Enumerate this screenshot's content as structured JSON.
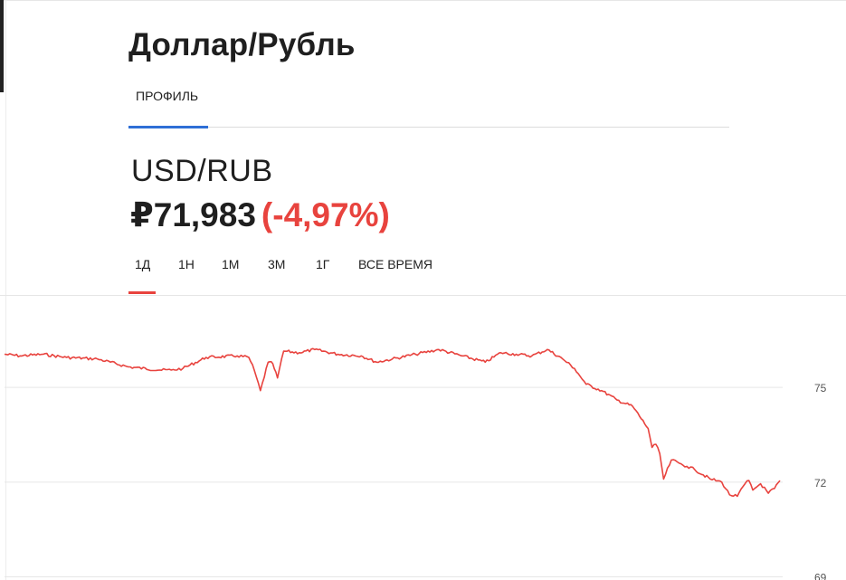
{
  "header": {
    "title": "Доллар/Рубль"
  },
  "tabs": [
    {
      "label": "ПРОФИЛЬ",
      "active": true
    }
  ],
  "quote": {
    "symbol": "USD/RUB",
    "price": "₽71,983",
    "change": "(-4,97%)"
  },
  "periods": [
    {
      "label": "1Д",
      "active": true
    },
    {
      "label": "1Н"
    },
    {
      "label": "1М"
    },
    {
      "label": "3М"
    },
    {
      "label": "1Г"
    },
    {
      "label": "ВСЕ ВРЕМЯ"
    }
  ],
  "colors": {
    "accent_tab": "#2e6fd6",
    "negative": "#e8433e",
    "line": "#e8433e",
    "grid": "#e6e6e6"
  },
  "chart_data": {
    "type": "line",
    "title": "",
    "xlabel": "",
    "ylabel": "",
    "ylim": [
      68.9,
      77.9
    ],
    "yticks": [
      75,
      72,
      69
    ],
    "grid": true,
    "series": [
      {
        "x": [
          0,
          0.02,
          0.05,
          0.08,
          0.12,
          0.16,
          0.2,
          0.215,
          0.23,
          0.26,
          0.3,
          0.315,
          0.322,
          0.33,
          0.34,
          0.346,
          0.352,
          0.36,
          0.38,
          0.4,
          0.43,
          0.46,
          0.48,
          0.5,
          0.53,
          0.56,
          0.59,
          0.62,
          0.64,
          0.66,
          0.68,
          0.7,
          0.72,
          0.735,
          0.75,
          0.77,
          0.79,
          0.81,
          0.83,
          0.835,
          0.84,
          0.845,
          0.85,
          0.86,
          0.87,
          0.88,
          0.89,
          0.91,
          0.925,
          0.935,
          0.945,
          0.955,
          0.96,
          0.965,
          0.975,
          0.985,
          0.993,
          1
        ],
        "y": [
          76.05,
          76.0,
          76.05,
          75.95,
          75.9,
          75.65,
          75.55,
          75.55,
          75.6,
          75.95,
          76.0,
          75.95,
          75.55,
          74.9,
          75.8,
          75.75,
          75.3,
          76.15,
          76.1,
          76.2,
          76.05,
          76.0,
          75.8,
          75.9,
          76.05,
          76.2,
          76.0,
          75.8,
          76.1,
          76.05,
          76.0,
          76.2,
          75.9,
          75.6,
          75.1,
          74.9,
          74.6,
          74.4,
          73.7,
          73.1,
          73.2,
          72.9,
          72.1,
          72.7,
          72.6,
          72.5,
          72.4,
          72.1,
          72.0,
          71.6,
          71.55,
          71.95,
          72.05,
          71.75,
          71.95,
          71.65,
          71.8,
          72.05
        ]
      }
    ]
  }
}
